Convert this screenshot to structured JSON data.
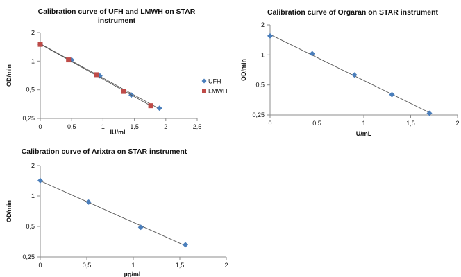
{
  "chart_data": [
    {
      "type": "scatter",
      "title_lines": [
        "Calibration curve of UFH and LMWH on STAR",
        "instrument"
      ],
      "xlabel": "IU/mL",
      "ylabel": "OD/min",
      "y_scale": "log",
      "xlim": [
        0,
        2.5
      ],
      "ylim": [
        0.25,
        2
      ],
      "x_ticks": [
        0,
        0.5,
        1,
        1.5,
        2,
        2.5
      ],
      "x_tick_labels": [
        "0",
        "0,5",
        "1",
        "1,5",
        "2",
        "2,5"
      ],
      "y_ticks": [
        0.25,
        0.5,
        1,
        2
      ],
      "y_tick_labels": [
        "0,25",
        "0,5",
        "1",
        "2"
      ],
      "grid": false,
      "legend": "right",
      "series": [
        {
          "name": "UFH",
          "marker": "diamond",
          "color": "#4a7ebb",
          "x": [
            0,
            0.5,
            0.95,
            1.45,
            1.9
          ],
          "y": [
            1.5,
            1.03,
            0.7,
            0.44,
            0.32
          ],
          "trendline": true
        },
        {
          "name": "LMWH",
          "marker": "square",
          "color": "#be4b48",
          "x": [
            0,
            0.45,
            0.9,
            1.33,
            1.76
          ],
          "y": [
            1.5,
            1.03,
            0.72,
            0.48,
            0.34
          ],
          "trendline": true
        }
      ]
    },
    {
      "type": "scatter",
      "title_lines": [
        "Calibration curve of Orgaran on STAR instrument"
      ],
      "xlabel": "U/mL",
      "ylabel": "OD/min",
      "y_scale": "log",
      "xlim": [
        0,
        2
      ],
      "ylim": [
        0.25,
        2
      ],
      "x_ticks": [
        0,
        0.5,
        1,
        1.5,
        2
      ],
      "x_tick_labels": [
        "0",
        "0,5",
        "1",
        "1,5",
        "2"
      ],
      "y_ticks": [
        0.25,
        0.5,
        1,
        2
      ],
      "y_tick_labels": [
        "0,25",
        "0,5",
        "1",
        "2"
      ],
      "grid": false,
      "series": [
        {
          "marker": "diamond",
          "color": "#4a7ebb",
          "x": [
            0,
            0.45,
            0.9,
            1.3,
            1.7
          ],
          "y": [
            1.55,
            1.03,
            0.63,
            0.4,
            0.26
          ],
          "trendline": true
        }
      ]
    },
    {
      "type": "scatter",
      "title_lines": [
        "Calibration curve of Arixtra on STAR instrument"
      ],
      "xlabel": "µg/mL",
      "ylabel": "OD/min",
      "y_scale": "log",
      "xlim": [
        0,
        2
      ],
      "ylim": [
        0.25,
        2
      ],
      "x_ticks": [
        0,
        0.5,
        1,
        1.5,
        2
      ],
      "x_tick_labels": [
        "0",
        "0,5",
        "1",
        "1,5",
        "2"
      ],
      "y_ticks": [
        0.25,
        0.5,
        1,
        2
      ],
      "y_tick_labels": [
        "0,25",
        "0,5",
        "1",
        "2"
      ],
      "grid": false,
      "series": [
        {
          "marker": "diamond",
          "color": "#4a7ebb",
          "x": [
            0,
            0.52,
            1.08,
            1.56
          ],
          "y": [
            1.42,
            0.87,
            0.49,
            0.33
          ],
          "trendline": true
        }
      ]
    }
  ]
}
